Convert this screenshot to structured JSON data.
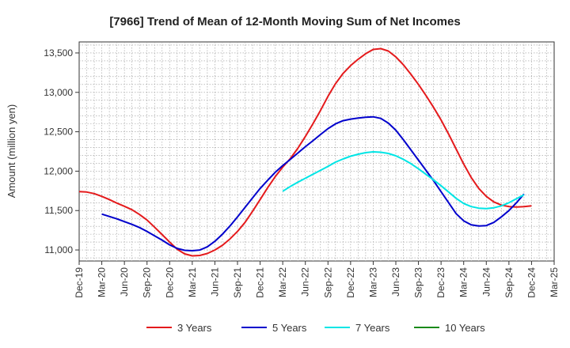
{
  "chart_data": {
    "type": "line",
    "title": "[7966]  Trend of Mean of 12-Month Moving Sum of Net Incomes",
    "ylabel": "Amount (million yen)",
    "xlabel": "",
    "ylim": [
      10860,
      13640
    ],
    "yticks": [
      11000,
      11500,
      12000,
      12500,
      13000,
      13500
    ],
    "ytick_labels": [
      "11,000",
      "11,500",
      "12,000",
      "12,500",
      "13,000",
      "13,500"
    ],
    "x_start": "Dec-19",
    "x_end": "Mar-25",
    "xtick_labels": [
      "Dec-19",
      "Mar-20",
      "Jun-20",
      "Sep-20",
      "Dec-20",
      "Mar-21",
      "Jun-21",
      "Sep-21",
      "Dec-21",
      "Mar-22",
      "Jun-22",
      "Sep-22",
      "Dec-22",
      "Mar-23",
      "Jun-23",
      "Sep-23",
      "Dec-23",
      "Mar-24",
      "Jun-24",
      "Sep-24",
      "Dec-24",
      "Mar-25"
    ],
    "grid": true,
    "legend_position": "bottom",
    "series": [
      {
        "name": "3 Years",
        "color": "#e41a1c",
        "points": [
          [
            "Dec-19",
            11740
          ],
          [
            "Jan-20",
            11735
          ],
          [
            "Feb-20",
            11715
          ],
          [
            "Mar-20",
            11680
          ],
          [
            "Apr-20",
            11640
          ],
          [
            "May-20",
            11595
          ],
          [
            "Jun-20",
            11555
          ],
          [
            "Jul-20",
            11510
          ],
          [
            "Aug-20",
            11450
          ],
          [
            "Sep-20",
            11380
          ],
          [
            "Oct-20",
            11290
          ],
          [
            "Nov-20",
            11195
          ],
          [
            "Dec-20",
            11100
          ],
          [
            "Jan-21",
            11010
          ],
          [
            "Feb-21",
            10950
          ],
          [
            "Mar-21",
            10925
          ],
          [
            "Apr-21",
            10930
          ],
          [
            "May-21",
            10955
          ],
          [
            "Jun-21",
            11000
          ],
          [
            "Jul-21",
            11060
          ],
          [
            "Aug-21",
            11140
          ],
          [
            "Sep-21",
            11235
          ],
          [
            "Oct-21",
            11350
          ],
          [
            "Nov-21",
            11490
          ],
          [
            "Dec-21",
            11640
          ],
          [
            "Jan-22",
            11790
          ],
          [
            "Feb-22",
            11930
          ],
          [
            "Mar-22",
            12050
          ],
          [
            "Apr-22",
            12160
          ],
          [
            "May-22",
            12290
          ],
          [
            "Jun-22",
            12440
          ],
          [
            "Jul-22",
            12600
          ],
          [
            "Aug-22",
            12770
          ],
          [
            "Sep-22",
            12950
          ],
          [
            "Oct-22",
            13110
          ],
          [
            "Nov-22",
            13240
          ],
          [
            "Dec-22",
            13340
          ],
          [
            "Jan-23",
            13420
          ],
          [
            "Feb-23",
            13490
          ],
          [
            "Mar-23",
            13545
          ],
          [
            "Apr-23",
            13555
          ],
          [
            "May-23",
            13525
          ],
          [
            "Jun-23",
            13450
          ],
          [
            "Jul-23",
            13350
          ],
          [
            "Aug-23",
            13230
          ],
          [
            "Sep-23",
            13100
          ],
          [
            "Oct-23",
            12960
          ],
          [
            "Nov-23",
            12810
          ],
          [
            "Dec-23",
            12650
          ],
          [
            "Jan-24",
            12470
          ],
          [
            "Feb-24",
            12280
          ],
          [
            "Mar-24",
            12090
          ],
          [
            "Apr-24",
            11920
          ],
          [
            "May-24",
            11780
          ],
          [
            "Jun-24",
            11680
          ],
          [
            "Jul-24",
            11610
          ],
          [
            "Aug-24",
            11570
          ],
          [
            "Sep-24",
            11550
          ],
          [
            "Oct-24",
            11545
          ],
          [
            "Nov-24",
            11550
          ],
          [
            "Dec-24",
            11560
          ]
        ]
      },
      {
        "name": "5 Years",
        "color": "#0000cc",
        "points": [
          [
            "Mar-20",
            11455
          ],
          [
            "Apr-20",
            11425
          ],
          [
            "May-20",
            11395
          ],
          [
            "Jun-20",
            11360
          ],
          [
            "Jul-20",
            11325
          ],
          [
            "Aug-20",
            11285
          ],
          [
            "Sep-20",
            11235
          ],
          [
            "Oct-20",
            11180
          ],
          [
            "Nov-20",
            11125
          ],
          [
            "Dec-20",
            11065
          ],
          [
            "Jan-21",
            11020
          ],
          [
            "Feb-21",
            10995
          ],
          [
            "Mar-21",
            10990
          ],
          [
            "Apr-21",
            11000
          ],
          [
            "May-21",
            11040
          ],
          [
            "Jun-21",
            11110
          ],
          [
            "Jul-21",
            11200
          ],
          [
            "Aug-21",
            11305
          ],
          [
            "Sep-21",
            11420
          ],
          [
            "Oct-21",
            11540
          ],
          [
            "Nov-21",
            11660
          ],
          [
            "Dec-21",
            11780
          ],
          [
            "Jan-22",
            11885
          ],
          [
            "Feb-22",
            11985
          ],
          [
            "Mar-22",
            12070
          ],
          [
            "Apr-22",
            12150
          ],
          [
            "May-22",
            12230
          ],
          [
            "Jun-22",
            12310
          ],
          [
            "Jul-22",
            12385
          ],
          [
            "Aug-22",
            12465
          ],
          [
            "Sep-22",
            12540
          ],
          [
            "Oct-22",
            12600
          ],
          [
            "Nov-22",
            12640
          ],
          [
            "Dec-22",
            12660
          ],
          [
            "Jan-23",
            12675
          ],
          [
            "Feb-23",
            12685
          ],
          [
            "Mar-23",
            12690
          ],
          [
            "Apr-23",
            12670
          ],
          [
            "May-23",
            12610
          ],
          [
            "Jun-23",
            12520
          ],
          [
            "Jul-23",
            12400
          ],
          [
            "Aug-23",
            12270
          ],
          [
            "Sep-23",
            12140
          ],
          [
            "Oct-23",
            12010
          ],
          [
            "Nov-23",
            11880
          ],
          [
            "Dec-23",
            11740
          ],
          [
            "Jan-24",
            11600
          ],
          [
            "Feb-24",
            11460
          ],
          [
            "Mar-24",
            11370
          ],
          [
            "Apr-24",
            11320
          ],
          [
            "May-24",
            11305
          ],
          [
            "Jun-24",
            11310
          ],
          [
            "Jul-24",
            11350
          ],
          [
            "Aug-24",
            11420
          ],
          [
            "Sep-24",
            11500
          ],
          [
            "Oct-24",
            11600
          ],
          [
            "Nov-24",
            11710
          ]
        ]
      },
      {
        "name": "7 Years",
        "color": "#00e5e5",
        "points": [
          [
            "Mar-22",
            11745
          ],
          [
            "Apr-22",
            11805
          ],
          [
            "May-22",
            11860
          ],
          [
            "Jun-22",
            11910
          ],
          [
            "Jul-22",
            11960
          ],
          [
            "Aug-22",
            12010
          ],
          [
            "Sep-22",
            12060
          ],
          [
            "Oct-22",
            12115
          ],
          [
            "Nov-22",
            12155
          ],
          [
            "Dec-22",
            12190
          ],
          [
            "Jan-23",
            12215
          ],
          [
            "Feb-23",
            12235
          ],
          [
            "Mar-23",
            12245
          ],
          [
            "Apr-23",
            12240
          ],
          [
            "May-23",
            12225
          ],
          [
            "Jun-23",
            12195
          ],
          [
            "Jul-23",
            12150
          ],
          [
            "Aug-23",
            12095
          ],
          [
            "Sep-23",
            12030
          ],
          [
            "Oct-23",
            11960
          ],
          [
            "Nov-23",
            11890
          ],
          [
            "Dec-23",
            11815
          ],
          [
            "Jan-24",
            11735
          ],
          [
            "Feb-24",
            11655
          ],
          [
            "Mar-24",
            11590
          ],
          [
            "Apr-24",
            11550
          ],
          [
            "May-24",
            11530
          ],
          [
            "Jun-24",
            11525
          ],
          [
            "Jul-24",
            11535
          ],
          [
            "Aug-24",
            11560
          ],
          [
            "Sep-24",
            11600
          ],
          [
            "Oct-24",
            11650
          ],
          [
            "Nov-24",
            11700
          ]
        ]
      },
      {
        "name": "10 Years",
        "color": "#1a8a1a",
        "points": []
      }
    ]
  }
}
